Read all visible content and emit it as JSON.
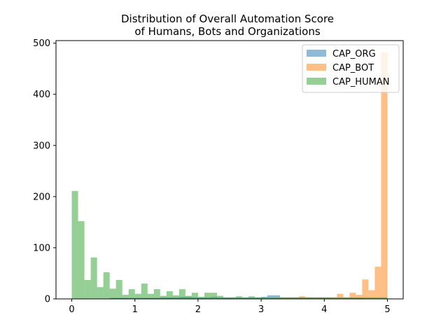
{
  "chart_data": {
    "type": "bar",
    "subtype": "histogram-overlay",
    "title": "Distribution of Overall Automation Score\nof Humans, Bots and Organizations",
    "title_lines": [
      "Distribution of Overall Automation Score",
      "of Humans, Bots and Organizations"
    ],
    "xlabel": "",
    "ylabel": "",
    "xlim": [
      -0.25,
      5.25
    ],
    "ylim": [
      0,
      505
    ],
    "xticks": [
      0,
      1,
      2,
      3,
      4,
      5
    ],
    "yticks": [
      0,
      100,
      200,
      300,
      400,
      500
    ],
    "bin_width": 0.1,
    "bin_starts": [
      0.0,
      0.1,
      0.2,
      0.3,
      0.4,
      0.5,
      0.6,
      0.7,
      0.8,
      0.9,
      1.0,
      1.1,
      1.2,
      1.3,
      1.4,
      1.5,
      1.6,
      1.7,
      1.8,
      1.9,
      2.0,
      2.1,
      2.2,
      2.3,
      2.4,
      2.5,
      2.6,
      2.7,
      2.8,
      2.9,
      3.0,
      3.1,
      3.2,
      3.3,
      3.4,
      3.5,
      3.6,
      3.7,
      3.8,
      3.9,
      4.0,
      4.1,
      4.2,
      4.3,
      4.4,
      4.5,
      4.6,
      4.7,
      4.8,
      4.9
    ],
    "legend_position": "upper right",
    "grid": false,
    "series": [
      {
        "name": "CAP_ORG",
        "color": "#1f77b4",
        "alpha": 0.5,
        "values": [
          0,
          0,
          0,
          0,
          0,
          0,
          2,
          2,
          2,
          2,
          2,
          2,
          2,
          2,
          3,
          3,
          3,
          4,
          4,
          3,
          3,
          3,
          4,
          3,
          3,
          3,
          3,
          3,
          3,
          3,
          4,
          7,
          7,
          3,
          3,
          3,
          3,
          3,
          3,
          3,
          3,
          2,
          2,
          2,
          2,
          2,
          1,
          1,
          1,
          1
        ]
      },
      {
        "name": "CAP_BOT",
        "color": "#ff7f0e",
        "alpha": 0.5,
        "values": [
          0,
          0,
          0,
          0,
          0,
          0,
          0,
          0,
          0,
          0,
          0,
          0,
          0,
          0,
          0,
          0,
          0,
          0,
          0,
          0,
          0,
          0,
          0,
          0,
          0,
          0,
          0,
          0,
          0,
          0,
          0,
          0,
          2,
          2,
          2,
          2,
          5,
          3,
          2,
          2,
          2,
          3,
          10,
          3,
          12,
          8,
          38,
          17,
          63,
          482
        ]
      },
      {
        "name": "CAP_HUMAN",
        "color": "#2ca02c",
        "alpha": 0.5,
        "values": [
          211,
          152,
          37,
          81,
          23,
          52,
          20,
          37,
          8,
          19,
          10,
          30,
          10,
          19,
          6,
          15,
          7,
          19,
          6,
          12,
          4,
          12,
          12,
          6,
          3,
          3,
          5,
          3,
          5,
          3,
          3,
          3,
          3,
          3,
          3,
          3,
          3,
          3,
          3,
          3,
          3,
          3,
          3,
          3,
          3,
          3,
          3,
          3,
          3,
          3
        ]
      }
    ]
  }
}
